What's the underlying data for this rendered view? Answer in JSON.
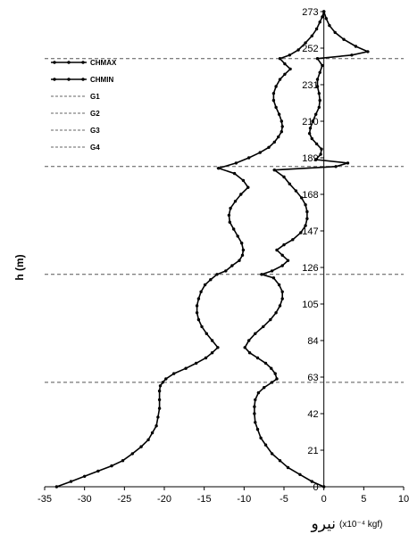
{
  "chart_data": {
    "type": "line",
    "xlabel_text": "نيرو",
    "xlabel_unit": "(x10⁻⁴ kgf)",
    "ylabel": "h (m)",
    "xlim": [
      -35,
      10
    ],
    "ylim": [
      0,
      273
    ],
    "x_ticks": [
      "-35",
      "-30",
      "-25",
      "-20",
      "-15",
      "-10",
      "-5",
      "0",
      "5",
      "10"
    ],
    "y_ticks": [
      "0",
      "21",
      "42",
      "63",
      "84",
      "105",
      "126",
      "147",
      "168",
      "189",
      "210",
      "231",
      "252",
      "273"
    ],
    "legend": {
      "placement": "top-left",
      "entries": [
        "CHMAX",
        "CHMIN",
        "G1",
        "G2",
        "G3",
        "G4"
      ]
    },
    "guide_lines_h": [
      60,
      122,
      184,
      246
    ],
    "series": [
      {
        "name": "CHMAX",
        "points": [
          [
            0,
            0
          ],
          [
            -1.5,
            3
          ],
          [
            -3,
            7
          ],
          [
            -4.5,
            11
          ],
          [
            -5.5,
            15
          ],
          [
            -6.5,
            19
          ],
          [
            -7.3,
            24
          ],
          [
            -7.9,
            28
          ],
          [
            -8.3,
            33
          ],
          [
            -8.6,
            37
          ],
          [
            -8.7,
            42
          ],
          [
            -8.7,
            46
          ],
          [
            -8.6,
            50
          ],
          [
            -8.2,
            54
          ],
          [
            -7.5,
            57
          ],
          [
            -6.5,
            60
          ],
          [
            -5.9,
            62
          ],
          [
            -6.1,
            65
          ],
          [
            -6.6,
            68
          ],
          [
            -7.3,
            71
          ],
          [
            -8.3,
            74
          ],
          [
            -9.3,
            77
          ],
          [
            -9.9,
            80
          ],
          [
            -9.4,
            84
          ],
          [
            -8.6,
            88
          ],
          [
            -7.6,
            92
          ],
          [
            -6.7,
            96
          ],
          [
            -6.0,
            100
          ],
          [
            -5.5,
            104
          ],
          [
            -5.2,
            108
          ],
          [
            -5.2,
            112
          ],
          [
            -5.6,
            116
          ],
          [
            -6.3,
            120
          ],
          [
            -7.8,
            122
          ],
          [
            -6.5,
            124
          ],
          [
            -5.2,
            127
          ],
          [
            -4.5,
            130
          ],
          [
            -5.2,
            133
          ],
          [
            -5.9,
            136
          ],
          [
            -5.0,
            139
          ],
          [
            -3.9,
            142
          ],
          [
            -2.9,
            146
          ],
          [
            -2.3,
            150
          ],
          [
            -2.1,
            154
          ],
          [
            -2.1,
            158
          ],
          [
            -2.3,
            162
          ],
          [
            -2.8,
            166
          ],
          [
            -3.5,
            170
          ],
          [
            -4.3,
            174
          ],
          [
            -5.0,
            178
          ],
          [
            -6.2,
            182
          ],
          [
            1.5,
            184
          ],
          [
            3.0,
            186
          ],
          [
            -1.0,
            188
          ],
          [
            -0.4,
            191
          ],
          [
            -0.3,
            194
          ],
          [
            -0.9,
            197
          ],
          [
            -1.5,
            200
          ],
          [
            -1.8,
            203
          ],
          [
            -1.7,
            206
          ],
          [
            -1.4,
            210
          ],
          [
            -1.0,
            214
          ],
          [
            -0.6,
            218
          ],
          [
            -0.5,
            222
          ],
          [
            -0.6,
            226
          ],
          [
            -0.8,
            230
          ],
          [
            -0.8,
            234
          ],
          [
            -0.5,
            238
          ],
          [
            -0.2,
            242
          ],
          [
            -0.8,
            246
          ],
          [
            3.5,
            248
          ],
          [
            5.5,
            250
          ],
          [
            4.0,
            253
          ],
          [
            2.5,
            257
          ],
          [
            1.4,
            261
          ],
          [
            0.7,
            265
          ],
          [
            0.3,
            269
          ],
          [
            0,
            273
          ]
        ]
      },
      {
        "name": "CHMIN",
        "points": [
          [
            -33.5,
            0
          ],
          [
            -31.7,
            3
          ],
          [
            -30,
            6
          ],
          [
            -28.3,
            9
          ],
          [
            -26.6,
            12
          ],
          [
            -25.2,
            15
          ],
          [
            -24,
            19
          ],
          [
            -22.9,
            23
          ],
          [
            -22,
            27
          ],
          [
            -21.5,
            31
          ],
          [
            -21,
            35
          ],
          [
            -20.8,
            40
          ],
          [
            -20.6,
            45
          ],
          [
            -20.6,
            50
          ],
          [
            -20.6,
            55
          ],
          [
            -20.5,
            58
          ],
          [
            -20.2,
            60
          ],
          [
            -19.8,
            62
          ],
          [
            -18.8,
            65
          ],
          [
            -17.3,
            68
          ],
          [
            -16,
            71
          ],
          [
            -14.8,
            74
          ],
          [
            -14,
            77
          ],
          [
            -13.3,
            80
          ],
          [
            -14,
            84
          ],
          [
            -14.7,
            88
          ],
          [
            -15.3,
            92
          ],
          [
            -15.7,
            96
          ],
          [
            -15.9,
            100
          ],
          [
            -15.9,
            104
          ],
          [
            -15.7,
            108
          ],
          [
            -15.4,
            112
          ],
          [
            -14.9,
            116
          ],
          [
            -14.2,
            119
          ],
          [
            -13.4,
            122
          ],
          [
            -12.3,
            124
          ],
          [
            -11.5,
            127
          ],
          [
            -10.6,
            130
          ],
          [
            -10.2,
            133
          ],
          [
            -10.1,
            136
          ],
          [
            -10.3,
            140
          ],
          [
            -10.8,
            144
          ],
          [
            -11.3,
            148
          ],
          [
            -11.8,
            152
          ],
          [
            -11.9,
            156
          ],
          [
            -11.7,
            160
          ],
          [
            -11.1,
            164
          ],
          [
            -10.4,
            168
          ],
          [
            -9.5,
            172
          ],
          [
            -10.1,
            176
          ],
          [
            -11.2,
            180
          ],
          [
            -13.2,
            183
          ],
          [
            -11.0,
            186
          ],
          [
            -9.4,
            189
          ],
          [
            -8.0,
            192
          ],
          [
            -6.9,
            195
          ],
          [
            -6.2,
            198
          ],
          [
            -5.7,
            201
          ],
          [
            -5.3,
            204
          ],
          [
            -5.2,
            207
          ],
          [
            -5.3,
            210
          ],
          [
            -5.6,
            214
          ],
          [
            -6.0,
            218
          ],
          [
            -6.3,
            222
          ],
          [
            -6.3,
            226
          ],
          [
            -6.0,
            230
          ],
          [
            -5.5,
            234
          ],
          [
            -4.9,
            237
          ],
          [
            -4.2,
            240
          ],
          [
            -4.9,
            243
          ],
          [
            -5.5,
            246
          ],
          [
            -4.3,
            248
          ],
          [
            -3.2,
            251
          ],
          [
            -2.3,
            255
          ],
          [
            -1.5,
            259
          ],
          [
            -0.9,
            263
          ],
          [
            -0.5,
            267
          ],
          [
            -0.2,
            270
          ],
          [
            0,
            273
          ]
        ]
      }
    ]
  }
}
